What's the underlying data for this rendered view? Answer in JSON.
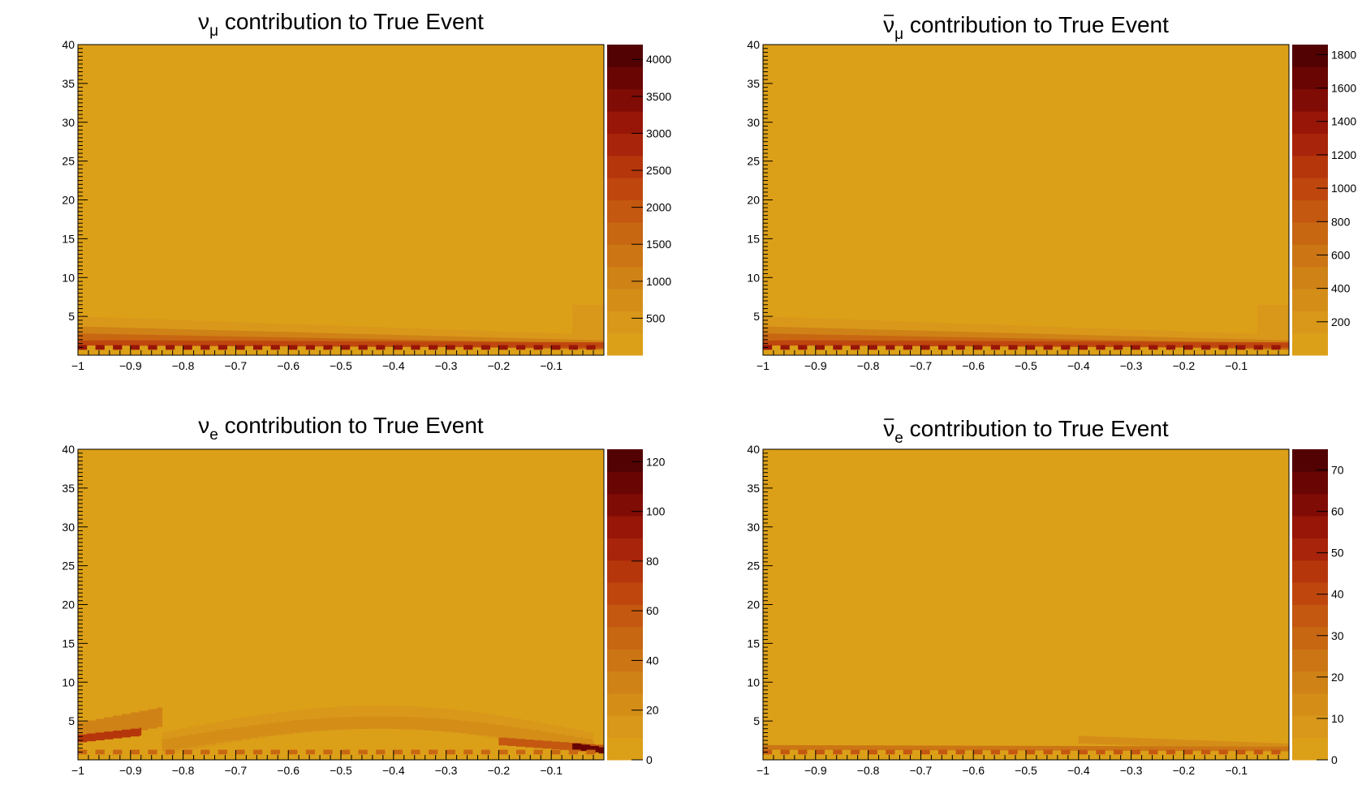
{
  "colors": {
    "scale": [
      "#dca018",
      "#d9981a",
      "#d48e18",
      "#cf8216",
      "#cb7514",
      "#c86712",
      "#c45810",
      "#bf470e",
      "#b6360c",
      "#a8240a",
      "#971608",
      "#800c06",
      "#690604",
      "#520202"
    ]
  },
  "chart_data": [
    {
      "type": "heatmap",
      "title": "ν_μ contribution to True Event",
      "title_main": "ν",
      "title_sub": "μ",
      "title_bar": false,
      "title_rest": " contribution to True Event",
      "xlim": [
        -1,
        0
      ],
      "ylim": [
        0,
        40
      ],
      "x_ticks": [
        "−1",
        "−0.9",
        "−0.8",
        "−0.7",
        "−0.6",
        "−0.5",
        "−0.4",
        "−0.3",
        "−0.2",
        "−0.1"
      ],
      "y_ticks": [
        "5",
        "10",
        "15",
        "20",
        "25",
        "30",
        "35",
        "40"
      ],
      "zmax": 4200,
      "z_ticks": [
        "500",
        "1000",
        "1500",
        "2000",
        "2500",
        "3000",
        "3500",
        "4000"
      ],
      "z_tick_values": [
        500,
        1000,
        1500,
        2000,
        2500,
        3000,
        3500,
        4000
      ],
      "background_z": 0,
      "regions": [
        {
          "shape": "band",
          "x0": -1,
          "x1": 0,
          "y_at_x0": 4.2,
          "y_at_x1": 1.8,
          "thickness": 1.6,
          "z": 450
        },
        {
          "shape": "band",
          "x0": -1,
          "x1": 0,
          "y_at_x0": 3.2,
          "y_at_x1": 1.4,
          "thickness": 1.0,
          "z": 900
        },
        {
          "shape": "band",
          "x0": -1,
          "x1": 0,
          "y_at_x0": 2.4,
          "y_at_x1": 1.1,
          "thickness": 0.8,
          "z": 1500
        },
        {
          "shape": "band",
          "x0": -1,
          "x1": 0,
          "y_at_x0": 1.6,
          "y_at_x1": 1.3,
          "thickness": 0.7,
          "z": 2300
        },
        {
          "shape": "dash",
          "x0": -1,
          "x1": 0,
          "y": 1.0,
          "thickness": 0.6,
          "z": 3200
        },
        {
          "shape": "blob",
          "x0": -0.06,
          "x1": 0,
          "y0": 2.5,
          "y1": 6.5,
          "z": 300
        }
      ]
    },
    {
      "type": "heatmap",
      "title": "ν̄_μ contribution to True Event",
      "title_main": "ν",
      "title_sub": "μ",
      "title_bar": true,
      "title_rest": " contribution to True Event",
      "xlim": [
        -1,
        0
      ],
      "ylim": [
        0,
        40
      ],
      "x_ticks": [
        "−1",
        "−0.9",
        "−0.8",
        "−0.7",
        "−0.6",
        "−0.5",
        "−0.4",
        "−0.3",
        "−0.2",
        "−0.1"
      ],
      "y_ticks": [
        "5",
        "10",
        "15",
        "20",
        "25",
        "30",
        "35",
        "40"
      ],
      "zmax": 1860,
      "z_ticks": [
        "200",
        "400",
        "600",
        "800",
        "1000",
        "1200",
        "1400",
        "1600",
        "1800"
      ],
      "z_tick_values": [
        200,
        400,
        600,
        800,
        1000,
        1200,
        1400,
        1600,
        1800
      ],
      "background_z": 0,
      "regions": [
        {
          "shape": "band",
          "x0": -1,
          "x1": 0,
          "y_at_x0": 4.2,
          "y_at_x1": 1.8,
          "thickness": 1.6,
          "z": 200
        },
        {
          "shape": "band",
          "x0": -1,
          "x1": 0,
          "y_at_x0": 3.2,
          "y_at_x1": 1.4,
          "thickness": 1.0,
          "z": 420
        },
        {
          "shape": "band",
          "x0": -1,
          "x1": 0,
          "y_at_x0": 2.4,
          "y_at_x1": 1.1,
          "thickness": 0.8,
          "z": 700
        },
        {
          "shape": "band",
          "x0": -1,
          "x1": 0,
          "y_at_x0": 1.6,
          "y_at_x1": 1.3,
          "thickness": 0.7,
          "z": 1050
        },
        {
          "shape": "dash",
          "x0": -1,
          "x1": 0,
          "y": 1.0,
          "thickness": 0.6,
          "z": 1450
        },
        {
          "shape": "blob",
          "x0": -0.06,
          "x1": 0,
          "y0": 2.5,
          "y1": 6.5,
          "z": 140
        }
      ]
    },
    {
      "type": "heatmap",
      "title": "ν_e contribution to True Event",
      "title_main": "ν",
      "title_sub": "e",
      "title_bar": false,
      "title_rest": " contribution to True Event",
      "xlim": [
        -1,
        0
      ],
      "ylim": [
        0,
        40
      ],
      "x_ticks": [
        "−1",
        "−0.9",
        "−0.8",
        "−0.7",
        "−0.6",
        "−0.5",
        "−0.4",
        "−0.3",
        "−0.2",
        "−0.1"
      ],
      "y_ticks": [
        "5",
        "10",
        "15",
        "20",
        "25",
        "30",
        "35",
        "40"
      ],
      "zmax": 125,
      "z_ticks": [
        "0",
        "20",
        "40",
        "60",
        "80",
        "100",
        "120"
      ],
      "z_tick_values": [
        0,
        20,
        40,
        60,
        80,
        100,
        120
      ],
      "background_z": 0,
      "regions": [
        {
          "shape": "arc",
          "x0": -0.84,
          "x1": -0.02,
          "y_center": 5.5,
          "y_edge": 2.0,
          "thickness": 3.0,
          "z": 12
        },
        {
          "shape": "arc",
          "x0": -0.84,
          "x1": -0.02,
          "y_center": 4.8,
          "y_edge": 1.8,
          "thickness": 1.6,
          "z": 22
        },
        {
          "shape": "band",
          "x0": -1,
          "x1": -0.84,
          "y_at_x0": 3.5,
          "y_at_x1": 5.5,
          "thickness": 2.5,
          "z": 35
        },
        {
          "shape": "band",
          "x0": -1,
          "x1": -0.88,
          "y_at_x0": 2.7,
          "y_at_x1": 3.6,
          "thickness": 1.0,
          "z": 80
        },
        {
          "shape": "band",
          "x0": -0.2,
          "x1": 0,
          "y_at_x0": 2.4,
          "y_at_x1": 1.4,
          "thickness": 1.0,
          "z": 60
        },
        {
          "shape": "band",
          "x0": -0.06,
          "x1": 0,
          "y_at_x0": 1.8,
          "y_at_x1": 1.2,
          "thickness": 0.8,
          "z": 115
        },
        {
          "shape": "dash",
          "x0": -1,
          "x1": 0,
          "y": 1.0,
          "thickness": 0.6,
          "z": 50
        }
      ]
    },
    {
      "type": "heatmap",
      "title": "ν̄_e contribution to True Event",
      "title_main": "ν",
      "title_sub": "e",
      "title_bar": true,
      "title_rest": " contribution to True Event",
      "xlim": [
        -1,
        0
      ],
      "ylim": [
        0,
        40
      ],
      "x_ticks": [
        "−1",
        "−0.9",
        "−0.8",
        "−0.7",
        "−0.6",
        "−0.5",
        "−0.4",
        "−0.3",
        "−0.2",
        "−0.1"
      ],
      "y_ticks": [
        "5",
        "10",
        "15",
        "20",
        "25",
        "30",
        "35",
        "40"
      ],
      "zmax": 75,
      "z_ticks": [
        "0",
        "10",
        "20",
        "30",
        "40",
        "50",
        "60",
        "70"
      ],
      "z_tick_values": [
        0,
        10,
        20,
        30,
        40,
        50,
        60,
        70
      ],
      "background_z": 0,
      "regions": [
        {
          "shape": "band",
          "x0": -0.4,
          "x1": 0,
          "y_at_x0": 2.6,
          "y_at_x1": 1.6,
          "thickness": 1.0,
          "z": 15
        },
        {
          "shape": "band",
          "x0": -1,
          "x1": 0,
          "y_at_x0": 1.6,
          "y_at_x1": 1.4,
          "thickness": 0.6,
          "z": 22
        },
        {
          "shape": "dash",
          "x0": -1,
          "x1": 0,
          "y": 1.0,
          "thickness": 0.6,
          "z": 35
        }
      ]
    }
  ]
}
